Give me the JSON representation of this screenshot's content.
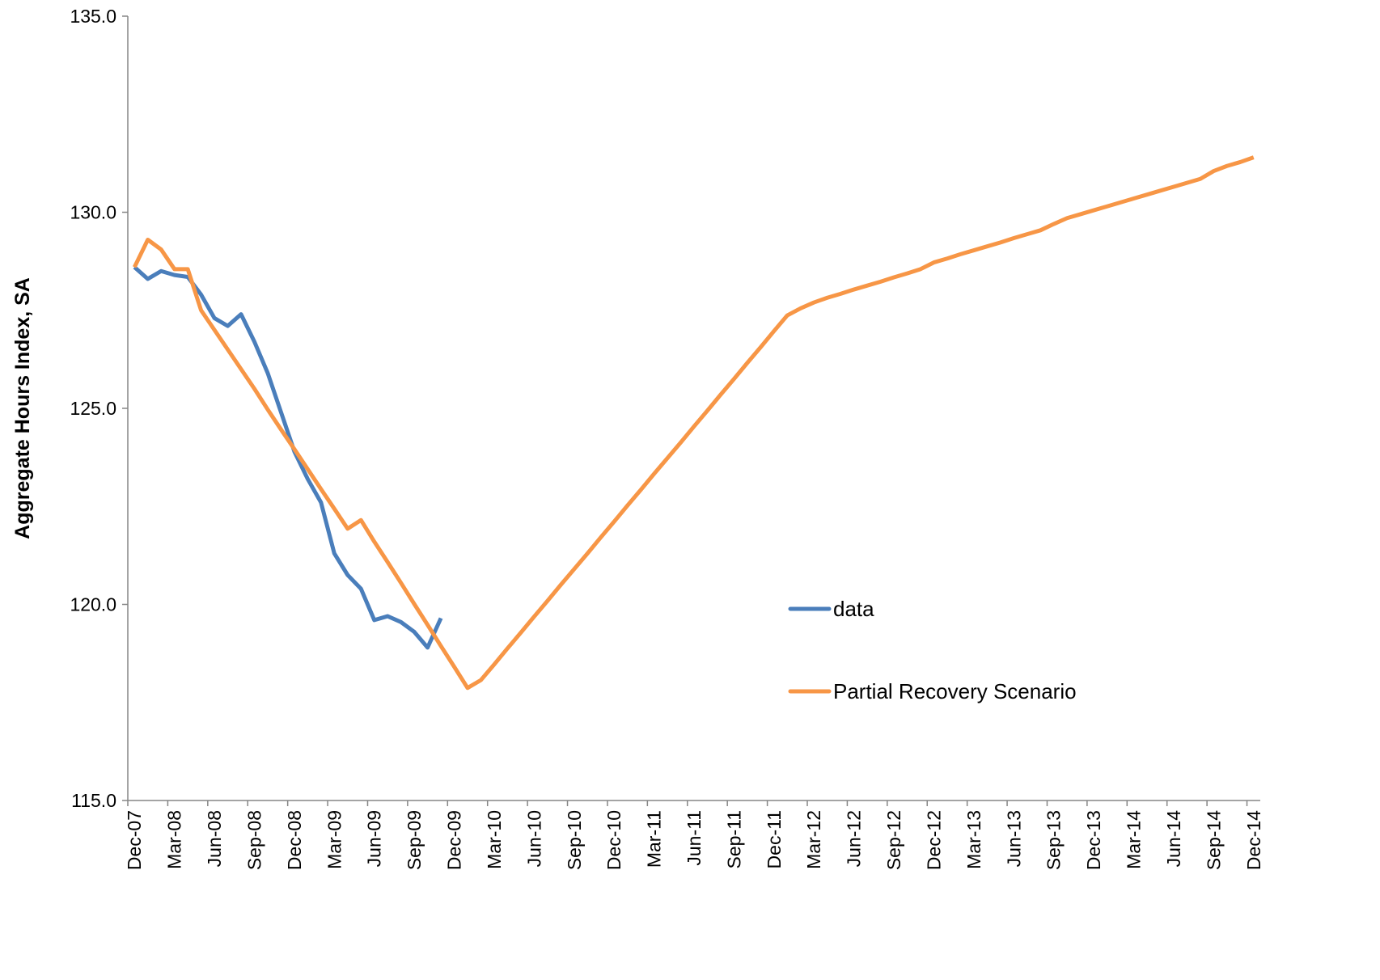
{
  "chart_data": {
    "type": "line",
    "ylabel": "Aggregate Hours Index, SA",
    "categories": [
      "Dec-07",
      null,
      null,
      "Mar-08",
      null,
      null,
      "Jun-08",
      null,
      null,
      "Sep-08",
      null,
      null,
      "Dec-08",
      null,
      null,
      "Mar-09",
      null,
      null,
      "Jun-09",
      null,
      null,
      "Sep-09",
      null,
      null,
      "Dec-09",
      null,
      null,
      "Mar-10",
      null,
      null,
      "Jun-10",
      null,
      null,
      "Sep-10",
      null,
      null,
      "Dec-10",
      null,
      null,
      "Mar-11",
      null,
      null,
      "Jun-11",
      null,
      null,
      "Sep-11",
      null,
      null,
      "Dec-11",
      null,
      null,
      "Mar-12",
      null,
      null,
      "Jun-12",
      null,
      null,
      "Sep-12",
      null,
      null,
      "Dec-12",
      null,
      null,
      "Mar-13",
      null,
      null,
      "Jun-13",
      null,
      null,
      "Sep-13",
      null,
      null,
      "Dec-13",
      null,
      null,
      "Mar-14",
      null,
      null,
      "Jun-14",
      null,
      null,
      "Sep-14",
      null,
      null,
      "Dec-14"
    ],
    "series": [
      {
        "name": "data",
        "color": "#4a7ebb",
        "values": [
          128.6,
          128.3,
          128.5,
          128.4,
          128.35,
          127.9,
          127.3,
          127.1,
          127.4,
          126.7,
          125.9,
          124.9,
          123.9,
          123.2,
          122.6,
          121.3,
          120.75,
          120.4,
          119.6,
          119.7,
          119.55,
          119.3,
          118.9,
          119.65,
          null,
          null,
          null,
          null,
          null,
          null,
          null,
          null,
          null,
          null,
          null,
          null,
          null,
          null,
          null,
          null,
          null,
          null,
          null,
          null,
          null,
          null,
          null,
          null,
          null,
          null,
          null,
          null,
          null,
          null,
          null,
          null,
          null,
          null,
          null,
          null,
          null,
          null,
          null,
          null,
          null,
          null,
          null,
          null,
          null,
          null,
          null,
          null,
          null,
          null,
          null,
          null,
          null,
          null,
          null,
          null,
          null,
          null,
          null,
          null,
          null
        ]
      },
      {
        "name": "Partial Recovery Scenario",
        "color": "#f79646",
        "values": [
          128.6,
          129.3,
          129.05,
          128.55,
          128.55,
          127.5,
          127.0,
          126.5,
          126.0,
          125.5,
          124.97,
          124.46,
          123.96,
          123.45,
          122.94,
          122.44,
          121.93,
          122.15,
          121.6,
          121.08,
          120.55,
          120.01,
          119.48,
          118.94,
          118.41,
          117.87,
          118.07,
          118.47,
          118.88,
          119.28,
          119.69,
          120.09,
          120.5,
          120.9,
          121.3,
          121.71,
          122.11,
          122.52,
          122.92,
          123.33,
          123.73,
          124.13,
          124.54,
          124.94,
          125.35,
          125.75,
          126.16,
          126.56,
          126.97,
          127.37,
          127.55,
          127.7,
          127.82,
          127.92,
          128.03,
          128.13,
          128.23,
          128.34,
          128.44,
          128.55,
          128.72,
          128.82,
          128.93,
          129.03,
          129.13,
          129.23,
          129.34,
          129.44,
          129.54,
          129.7,
          129.85,
          129.95,
          130.05,
          130.15,
          130.25,
          130.35,
          130.45,
          130.55,
          130.65,
          130.75,
          130.85,
          131.05,
          131.18,
          131.28,
          131.4
        ]
      }
    ],
    "ylim": [
      115,
      135
    ],
    "yticks": [
      {
        "value": 115,
        "label": "115.0"
      },
      {
        "value": 120,
        "label": "120.0"
      },
      {
        "value": 125,
        "label": "125.0"
      },
      {
        "value": 130,
        "label": "130.0"
      },
      {
        "value": 135,
        "label": "135.0"
      }
    ],
    "grid": false
  }
}
